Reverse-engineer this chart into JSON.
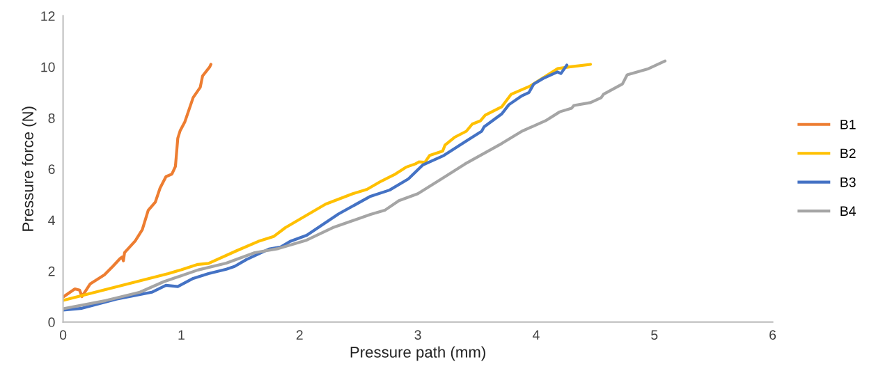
{
  "chart_data": {
    "type": "line",
    "xlabel": "Pressure path (mm)",
    "ylabel": "Pressure force (N)",
    "xlim": [
      0,
      6
    ],
    "xticks": [
      0,
      1,
      2,
      3,
      4,
      5,
      6
    ],
    "ylim": [
      0,
      12
    ],
    "yticks": [
      0,
      2,
      4,
      6,
      8,
      10,
      12
    ],
    "grid": false,
    "legend": "right",
    "marker": "none",
    "line_style": "solid",
    "series": [
      {
        "name": "B1",
        "color": "#ed7d31",
        "x": [
          0,
          0.1,
          0.14,
          0.16,
          0.23,
          0.35,
          0.42,
          0.48,
          0.5,
          0.51,
          0.52,
          0.61,
          0.67,
          0.72,
          0.78,
          0.82,
          0.87,
          0.92,
          0.95,
          0.97,
          0.99,
          1.03,
          1.1,
          1.16,
          1.18,
          1.24,
          1.25
        ],
        "values": [
          0.98,
          1.3,
          1.25,
          1.0,
          1.5,
          1.85,
          2.18,
          2.48,
          2.55,
          2.4,
          2.72,
          3.18,
          3.62,
          4.38,
          4.7,
          5.25,
          5.7,
          5.8,
          6.1,
          7.2,
          7.5,
          7.85,
          8.8,
          9.2,
          9.65,
          10.0,
          10.1
        ]
      },
      {
        "name": "B2",
        "color": "#ffc000",
        "x": [
          0,
          0.89,
          1.0,
          1.14,
          1.23,
          1.47,
          1.65,
          1.78,
          1.88,
          2.22,
          2.45,
          2.57,
          2.69,
          2.81,
          2.9,
          2.98,
          3.01,
          3.06,
          3.1,
          3.21,
          3.23,
          3.31,
          3.41,
          3.46,
          3.53,
          3.57,
          3.71,
          3.79,
          3.95,
          4.18,
          4.28,
          4.46
        ],
        "values": [
          0.85,
          1.9,
          2.05,
          2.26,
          2.3,
          2.8,
          3.16,
          3.35,
          3.7,
          4.62,
          5.03,
          5.2,
          5.52,
          5.8,
          6.07,
          6.2,
          6.28,
          6.26,
          6.53,
          6.7,
          6.94,
          7.24,
          7.48,
          7.76,
          7.89,
          8.11,
          8.44,
          8.93,
          9.25,
          9.93,
          10.0,
          10.1
        ]
      },
      {
        "name": "B3",
        "color": "#4472c4",
        "x": [
          0,
          0.16,
          0.45,
          0.75,
          0.87,
          0.97,
          1.1,
          1.23,
          1.38,
          1.45,
          1.55,
          1.74,
          1.84,
          1.92,
          2.06,
          2.33,
          2.6,
          2.76,
          2.92,
          3.04,
          3.22,
          3.41,
          3.54,
          3.56,
          3.71,
          3.77,
          3.88,
          3.94,
          3.98,
          4.06,
          4.18,
          4.21,
          4.26
        ],
        "values": [
          0.47,
          0.54,
          0.9,
          1.17,
          1.44,
          1.39,
          1.71,
          1.9,
          2.07,
          2.18,
          2.45,
          2.86,
          2.94,
          3.16,
          3.4,
          4.24,
          4.93,
          5.17,
          5.61,
          6.15,
          6.53,
          7.1,
          7.48,
          7.65,
          8.16,
          8.52,
          8.87,
          9.0,
          9.33,
          9.55,
          9.8,
          9.74,
          10.07
        ]
      },
      {
        "name": "B4",
        "color": "#a5a5a5",
        "x": [
          0,
          0.36,
          0.65,
          0.85,
          1.14,
          1.38,
          1.62,
          1.82,
          2.06,
          2.28,
          2.6,
          2.72,
          2.84,
          3.0,
          3.2,
          3.4,
          3.71,
          3.88,
          4.08,
          4.2,
          4.3,
          4.32,
          4.46,
          4.55,
          4.57,
          4.73,
          4.76,
          4.77,
          4.95,
          5.09
        ],
        "values": [
          0.52,
          0.84,
          1.17,
          1.58,
          2.04,
          2.31,
          2.72,
          2.88,
          3.21,
          3.7,
          4.22,
          4.38,
          4.76,
          5.03,
          5.61,
          6.2,
          7.0,
          7.48,
          7.89,
          8.24,
          8.38,
          8.49,
          8.6,
          8.79,
          8.93,
          9.33,
          9.6,
          9.69,
          9.93,
          10.23
        ]
      }
    ]
  }
}
